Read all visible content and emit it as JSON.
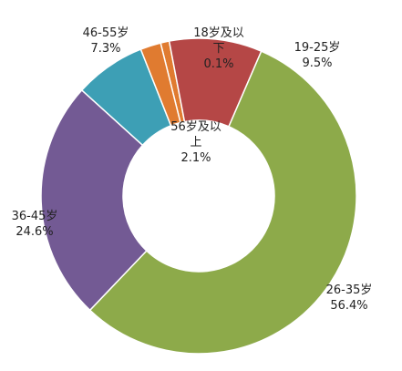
{
  "chart_data": {
    "type": "pie",
    "variant": "donut",
    "legend": "none",
    "slices": [
      {
        "category_lines": [
          "18岁及以",
          "下"
        ],
        "value_label": "0.1%",
        "value": 0.1,
        "color": "#E07B30"
      },
      {
        "category_lines": [
          "19-25岁"
        ],
        "value_label": "9.5%",
        "value": 9.5,
        "color": "#B54746"
      },
      {
        "category_lines": [
          "26-35岁"
        ],
        "value_label": "56.4%",
        "value": 56.4,
        "color": "#8DAA4A"
      },
      {
        "category_lines": [
          "36-45岁"
        ],
        "value_label": "24.6%",
        "value": 24.6,
        "color": "#735A94"
      },
      {
        "category_lines": [
          "46-55岁"
        ],
        "value_label": "7.3%",
        "value": 7.3,
        "color": "#3D9FB5"
      },
      {
        "category_lines": [
          "56岁及以",
          "上"
        ],
        "value_label": "2.1%",
        "value": 2.1,
        "color": "#E07B30"
      }
    ]
  }
}
